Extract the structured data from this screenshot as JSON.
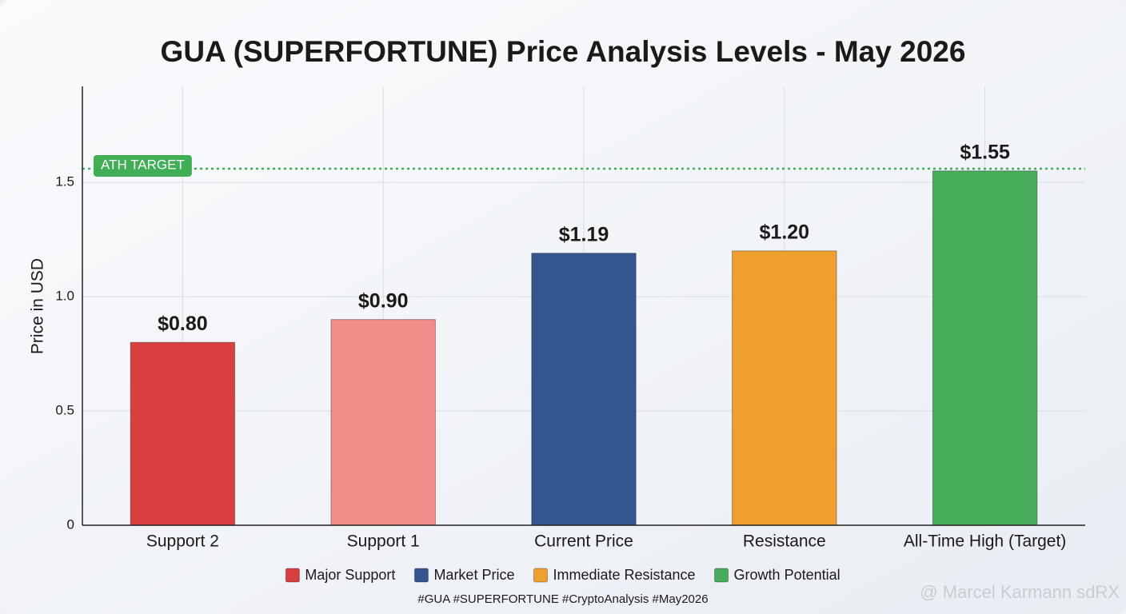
{
  "chart_data": {
    "type": "bar",
    "title": "GUA (SUPERFORTUNE) Price Analysis Levels - May 2026",
    "y_label": "Price in USD",
    "categories": [
      "Support 2",
      "Support 1",
      "Current Price",
      "Resistance",
      "All-Time High (Target)"
    ],
    "values": [
      0.8,
      0.9,
      1.19,
      1.2,
      1.55
    ],
    "value_labels": [
      "$0.80",
      "$0.90",
      "$1.19",
      "$1.20",
      "$1.55"
    ],
    "colors": [
      "#d93f3f",
      "#f28e8a",
      "#34568f",
      "#f0a02f",
      "#47ad5b"
    ],
    "ylim": [
      0,
      1.92
    ],
    "yticks": [
      0,
      0.5,
      {
        "value": 1,
        "label": "1.0"
      },
      1.5
    ],
    "grid": true,
    "annotation": {
      "text": "ATH TARGET",
      "value": 1.56,
      "color": "#3fae55"
    },
    "legend": [
      {
        "name": "Major Support",
        "color": "#d93f3f"
      },
      {
        "name": "Market Price",
        "color": "#34568f"
      },
      {
        "name": "Immediate Resistance",
        "color": "#f0a02f"
      },
      {
        "name": "Growth Potential",
        "color": "#47ad5b"
      }
    ],
    "footer": "#GUA #SUPERFORTUNE #CryptoAnalysis #May2026",
    "watermark": "@ Marcel Karmann sdRX"
  }
}
